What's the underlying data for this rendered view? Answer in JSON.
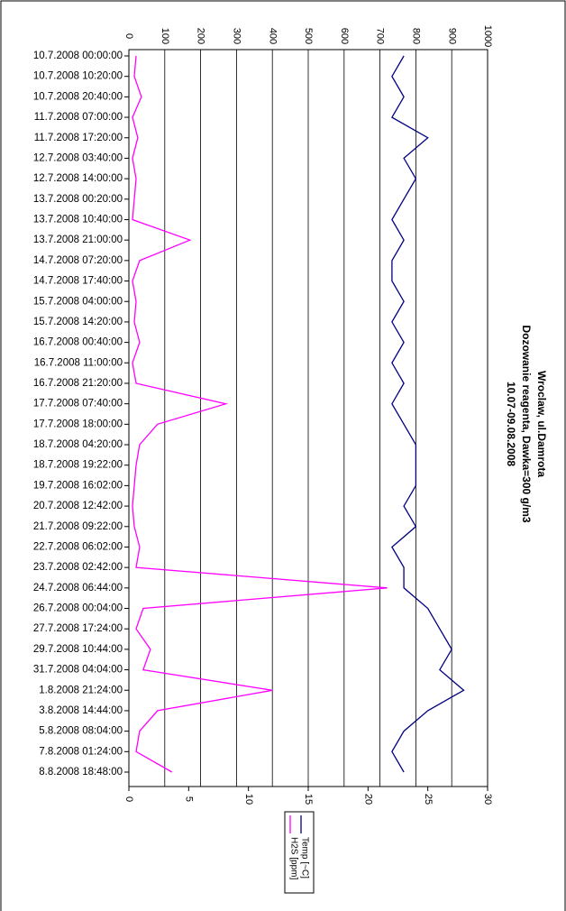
{
  "chart_data": {
    "type": "line",
    "title": [
      "Wroclaw, ul.Damrota",
      "Dozowanie reagenta, Dawka=300 g/m3",
      "10.07-09.08.2008"
    ],
    "categories": [
      "10.7.2008 00:00:00",
      "10.7.2008 10:20:00",
      "10.7.2008 20:40:00",
      "11.7.2008 07:00:00",
      "11.7.2008 17:20:00",
      "12.7.2008 03:40:00",
      "12.7.2008 14:00:00",
      "13.7.2008 00:20:00",
      "13.7.2008 10:40:00",
      "13.7.2008 21:00:00",
      "14.7.2008 07:20:00",
      "14.7.2008 17:40:00",
      "15.7.2008 04:00:00",
      "15.7.2008 14:20:00",
      "16.7.2008 00:40:00",
      "16.7.2008 11:00:00",
      "16.7.2008 21:20:00",
      "17.7.2008 07:40:00",
      "17.7.2008 18:00:00",
      "18.7.2008 04:20:00",
      "18.7.2008 19:22:00",
      "19.7.2008 16:02:00",
      "20.7.2008 12:42:00",
      "21.7.2008 09:22:00",
      "22.7.2008 06:02:00",
      "23.7.2008 02:42:00",
      "24.7.2008 06:44:00",
      "26.7.2008 00:04:00",
      "27.7.2008 17:24:00",
      "29.7.2008 10:44:00",
      "31.7.2008 04:04:00",
      "1.8.2008 21:24:00",
      "3.8.2008 14:44:00",
      "5.8.2008 08:04:00",
      "7.8.2008 01:24:00",
      "8.8.2008 18:48:00"
    ],
    "series": [
      {
        "name": "H2S [ppm]",
        "color": "#ff00ff",
        "values": [
          20,
          15,
          35,
          10,
          25,
          10,
          20,
          15,
          10,
          170,
          30,
          10,
          20,
          15,
          30,
          10,
          20,
          270,
          80,
          30,
          20,
          15,
          10,
          15,
          30,
          20,
          720,
          40,
          20,
          60,
          40,
          400,
          80,
          30,
          20,
          120
        ]
      },
      {
        "name": "Temp [~C]",
        "color": "#000080",
        "axis": "y2",
        "values": [
          23,
          22,
          23,
          22,
          25,
          23,
          24,
          23,
          22,
          23,
          22,
          22,
          23,
          22,
          23,
          22,
          23,
          22,
          23,
          24,
          24,
          24,
          23,
          24,
          22,
          23,
          23,
          25,
          26,
          27,
          26,
          28,
          25,
          23,
          22,
          23
        ]
      }
    ],
    "ylim": [
      0,
      1000
    ],
    "yticks": [
      0,
      100,
      200,
      300,
      400,
      500,
      600,
      700,
      800,
      900,
      1000
    ],
    "y2lim": [
      0,
      30
    ],
    "y2ticks": [
      0,
      5,
      10,
      15,
      20,
      25,
      30
    ],
    "grid": true
  }
}
